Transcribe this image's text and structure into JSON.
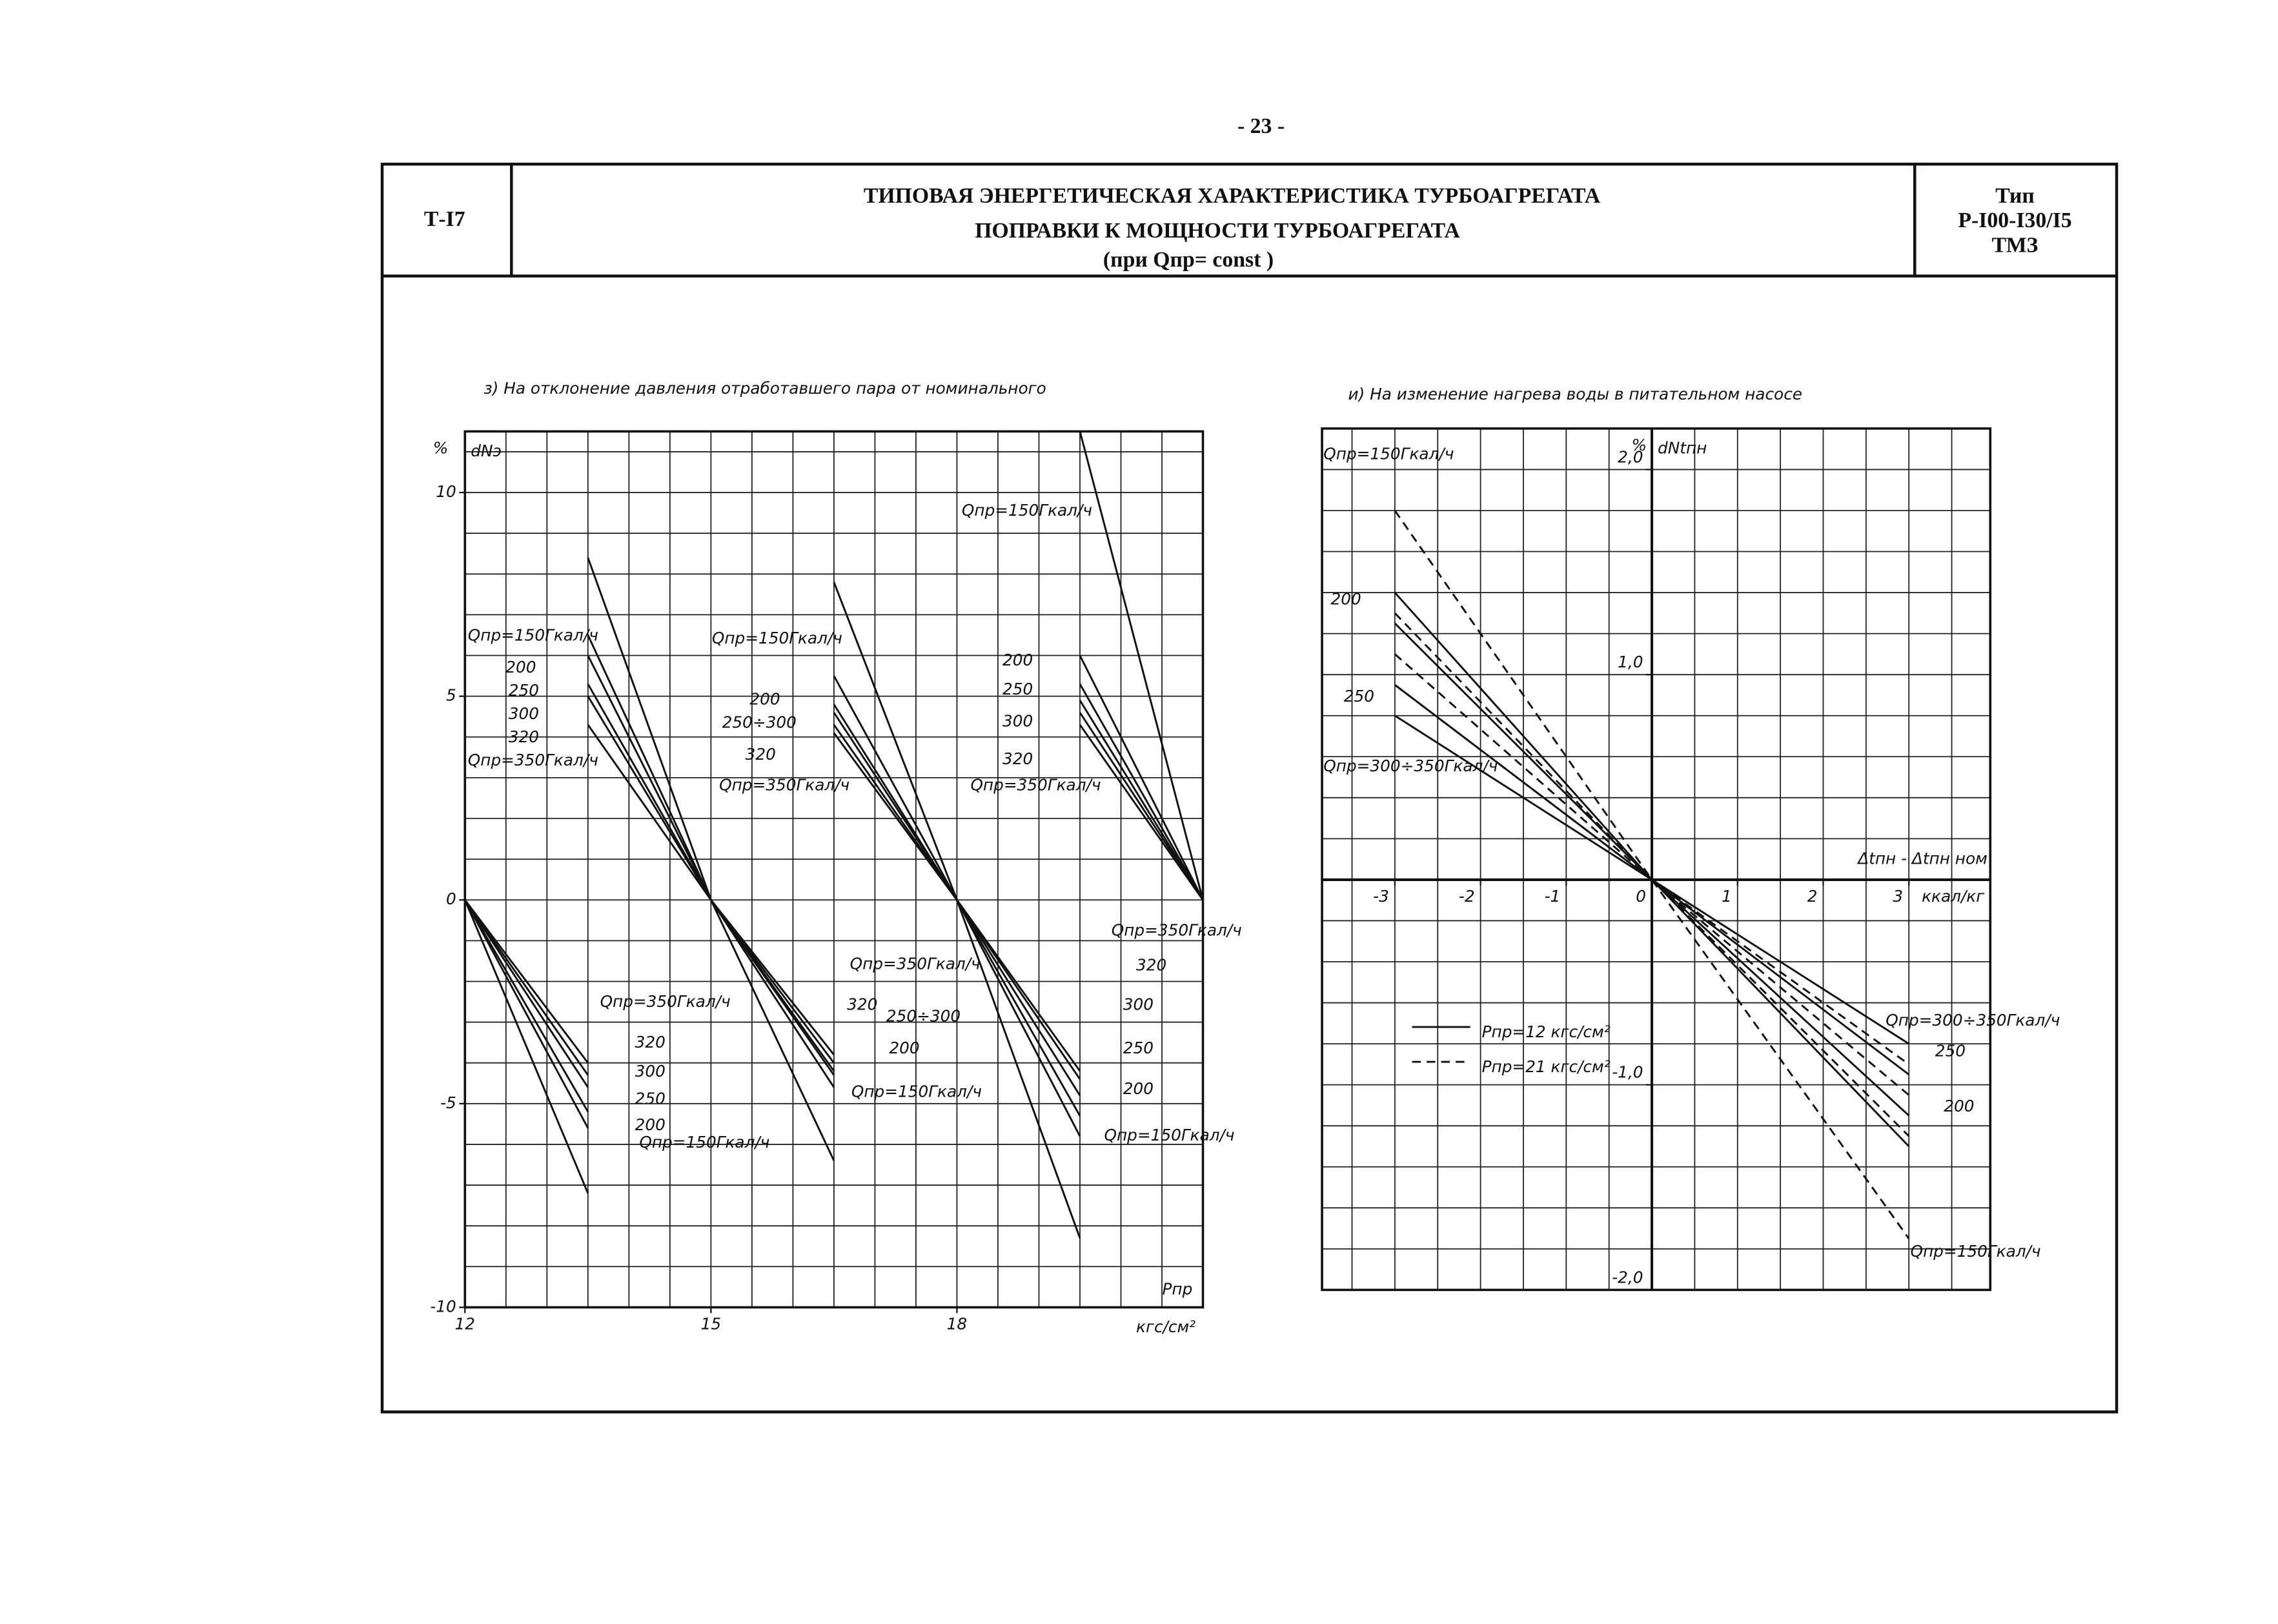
{
  "header": {
    "page_number": "- 23 -",
    "code": "Т-I7",
    "title_lines": [
      "ТИПОВАЯ ЭНЕРГЕТИЧЕСКАЯ ХАРАКТЕРИСТИКА ТУРБОАГРЕГАТА",
      "ПОПРАВКИ К МОЩНОСТИ ТУРБОАГРЕГАТА",
      "(при Qпр= const )"
    ],
    "type_lines": [
      "Тип",
      "Р-I00-I30/I5",
      "ТМЗ"
    ]
  },
  "chart_data": [
    {
      "type": "line",
      "title": "з) На отклонение давления отработавшего пара от номинального",
      "y_unit": "%",
      "y_label": "dNэ",
      "x_label": "Pпр",
      "x_unit": "кгс/см²",
      "color": "#111111",
      "grid": true,
      "xlim": [
        12,
        21
      ],
      "ylim": [
        -10,
        11.5
      ],
      "xticks": [
        12,
        15,
        18
      ],
      "yticks": [
        10,
        5,
        0,
        -5,
        -10
      ],
      "x": [
        12,
        13.5,
        13.5,
        13.5,
        15,
        16.5,
        16.5,
        16.5,
        18,
        19.5,
        19.5,
        19.5,
        21
      ],
      "series": [
        {
          "values": [
            0,
            -7.2,
            null,
            8.4,
            0,
            -6.4,
            null,
            7.8,
            0,
            -8.3,
            null,
            11.5,
            0
          ]
        },
        {
          "values": [
            0,
            -5.6,
            null,
            6.5,
            0,
            -4.6,
            null,
            5.5,
            0,
            -5.8,
            null,
            6.0,
            0
          ]
        },
        {
          "values": [
            0,
            -5.2,
            null,
            6.0,
            0,
            -4.3,
            null,
            4.8,
            0,
            -5.3,
            null,
            5.3,
            0
          ]
        },
        {
          "values": [
            0,
            -4.6,
            null,
            5.3,
            0,
            -4.2,
            null,
            4.6,
            0,
            -4.8,
            null,
            4.9,
            0
          ]
        },
        {
          "values": [
            0,
            -4.3,
            null,
            5.0,
            0,
            -4.0,
            null,
            4.3,
            0,
            -4.4,
            null,
            4.6,
            0
          ]
        },
        {
          "values": [
            0,
            -4.0,
            null,
            4.3,
            0,
            -3.8,
            null,
            4.1,
            0,
            -4.2,
            null,
            4.3,
            0
          ]
        }
      ],
      "annotations": [
        "Qпр=150Гкал/ч",
        "200",
        "250",
        "300",
        "320",
        "Qпр=350Гкал/ч",
        "Qпр=150Гкал/ч",
        "200",
        "250÷300",
        "320",
        "Qпр=350Гкал/ч",
        "Qпр=150Гкал/ч",
        "200",
        "250",
        "300",
        "320",
        "Qпр=350Гкал/ч",
        "Qпр=350Гкал/ч",
        "320",
        "300",
        "250",
        "200",
        "Qпр=150Гкал/ч",
        "Qпр=350Гкал/ч",
        "320",
        "250÷300",
        "200",
        "Qпр=150Гкал/ч",
        "Qпр=350Гкал/ч",
        "320",
        "300",
        "250",
        "200",
        "Qпр=150Гкал/ч"
      ]
    },
    {
      "type": "line",
      "title": "и) На изменение нагрева воды в питательном насосе",
      "y_unit": "%",
      "y_label": "dNtпн",
      "x_label": "Δtпн - Δtпн ном",
      "x_unit": "ккал/кг",
      "color": "#111111",
      "grid": true,
      "xlim": [
        -3.85,
        3.95
      ],
      "ylim": [
        -2,
        2.2
      ],
      "xticks": [
        -3,
        -2,
        -1,
        0,
        1,
        2,
        3
      ],
      "yticks": [
        {
          "value": 2,
          "label": "2,0"
        },
        {
          "value": 1,
          "label": "1,0"
        },
        {
          "value": -1,
          "label": "-1,0"
        },
        {
          "value": -2,
          "label": "-2,0"
        }
      ],
      "x": [
        -3,
        0,
        3
      ],
      "series": [
        {
          "dash": false,
          "values": [
            1.4,
            0,
            -1.3
          ]
        },
        {
          "dash": false,
          "values": [
            1.25,
            0,
            -1.15
          ]
        },
        {
          "dash": false,
          "values": [
            0.95,
            0,
            -0.95
          ]
        },
        {
          "dash": false,
          "values": [
            0.8,
            0,
            -0.8
          ]
        },
        {
          "dash": true,
          "values": [
            1.8,
            0,
            -1.75
          ]
        },
        {
          "dash": true,
          "values": [
            1.3,
            0,
            -1.25
          ]
        },
        {
          "dash": true,
          "values": [
            1.1,
            0,
            -1.05
          ]
        },
        {
          "dash": true,
          "values": [
            0.95,
            0,
            -0.9
          ]
        }
      ],
      "legend": [
        {
          "label": "Pпр=12 кгс/см²",
          "dash": false
        },
        {
          "label": "Pпр=21 кгс/см²",
          "dash": true
        }
      ],
      "annotations": [
        "Qпр=150Гкал/ч",
        "200",
        "250",
        "Qпр=300÷350Гкал/ч",
        "Qпр=300÷350Гкал/ч",
        "250",
        "200",
        "Qпр=150Гкал/ч"
      ]
    }
  ]
}
